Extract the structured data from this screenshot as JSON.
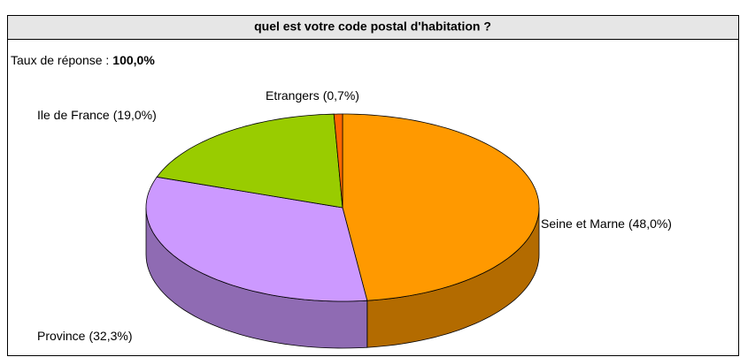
{
  "chart_data": {
    "type": "pie3d",
    "title": "quel est votre code postal d'habitation ?",
    "subtitle": "Taux de réponse :",
    "response_rate": "100,0%",
    "categories": [
      "Seine et Marne",
      "Province",
      "Ile de France",
      "Etrangers"
    ],
    "values": [
      48.0,
      32.3,
      19.0,
      0.7
    ],
    "value_labels": [
      "(48,0%)",
      "(32,3%)",
      "(19,0%)",
      "(0,7%)"
    ],
    "colors": [
      "#ff9900",
      "#cc99ff",
      "#99cc00",
      "#ff6600"
    ]
  }
}
